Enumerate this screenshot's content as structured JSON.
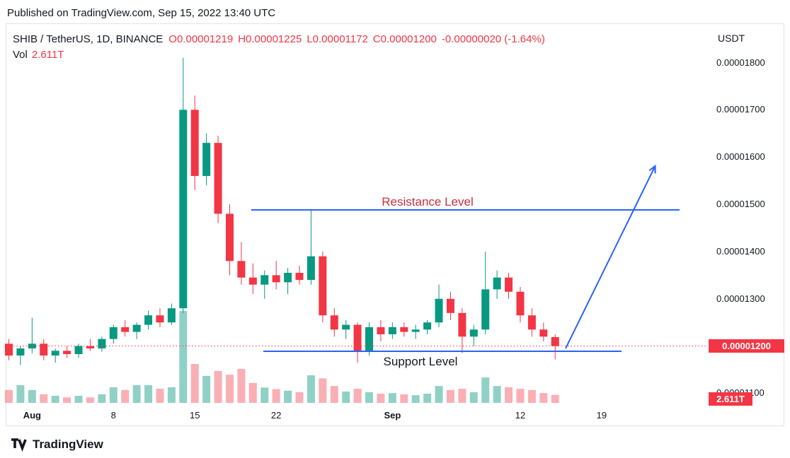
{
  "published": {
    "text": "Published on TradingView.com, Sep 15, 2022 13:40 UTC"
  },
  "legend": {
    "symbol": "SHIB / TetherUS, 1D, BINANCE",
    "ohlc": [
      "O0.00001219",
      "H0.00001225",
      "L0.00001172",
      "C0.00001200",
      "-0.00000020 (-1.64%)"
    ],
    "vol_label": "Vol",
    "vol_value": "2.611T"
  },
  "axis": {
    "currency": "USDT",
    "labels": [
      "0.00001800",
      "0.00001700",
      "0.00001600",
      "0.00001500",
      "0.00001400",
      "0.00001300",
      "0.00001200",
      "0.00001100"
    ],
    "price_badge": "0.00001200",
    "vol_badge": "2.611T"
  },
  "annotations": {
    "resistance": "Resistance Level",
    "support": "Support Level"
  },
  "footer": {
    "brand": "TradingView"
  },
  "colors": {
    "up": "#089981",
    "down": "#f23645",
    "volume_up": "rgba(8,153,129,0.45)",
    "volume_down": "rgba(242,54,69,0.40)",
    "annotation_blue": "#2962ff",
    "label_red": "#cc2f3d",
    "badge_red": "#f23645",
    "text_dark": "#131722"
  },
  "chart_data": {
    "type": "candlestick",
    "title": "SHIB / TetherUS, 1D, BINANCE",
    "interval": "1D",
    "price_unit": "1e-8 USDT (1200 = 0.00001200)",
    "ylim": [
      1100,
      1850
    ],
    "grid": false,
    "last_price": 1200,
    "resistance_level": 1487,
    "support_level": 1189,
    "trend_arrow": {
      "from_price": 1195,
      "to_price": 1585,
      "note": "projected breakout from support toward above resistance"
    },
    "dates": [
      "2022-07-30",
      "2022-07-31",
      "2022-08-01",
      "2022-08-02",
      "2022-08-03",
      "2022-08-04",
      "2022-08-05",
      "2022-08-06",
      "2022-08-07",
      "2022-08-08",
      "2022-08-09",
      "2022-08-10",
      "2022-08-11",
      "2022-08-12",
      "2022-08-13",
      "2022-08-14",
      "2022-08-15",
      "2022-08-16",
      "2022-08-17",
      "2022-08-18",
      "2022-08-19",
      "2022-08-20",
      "2022-08-21",
      "2022-08-22",
      "2022-08-23",
      "2022-08-24",
      "2022-08-25",
      "2022-08-26",
      "2022-08-27",
      "2022-08-28",
      "2022-08-29",
      "2022-08-30",
      "2022-08-31",
      "2022-09-01",
      "2022-09-02",
      "2022-09-03",
      "2022-09-04",
      "2022-09-05",
      "2022-09-06",
      "2022-09-07",
      "2022-09-08",
      "2022-09-09",
      "2022-09-10",
      "2022-09-11",
      "2022-09-12",
      "2022-09-13",
      "2022-09-14",
      "2022-09-15"
    ],
    "ohlc": [
      [
        1205,
        1215,
        1170,
        1180
      ],
      [
        1180,
        1200,
        1160,
        1195
      ],
      [
        1195,
        1260,
        1185,
        1205
      ],
      [
        1205,
        1215,
        1170,
        1180
      ],
      [
        1180,
        1195,
        1165,
        1190
      ],
      [
        1190,
        1200,
        1175,
        1183
      ],
      [
        1183,
        1205,
        1175,
        1200
      ],
      [
        1200,
        1215,
        1190,
        1195
      ],
      [
        1195,
        1220,
        1188,
        1215
      ],
      [
        1215,
        1245,
        1205,
        1240
      ],
      [
        1240,
        1255,
        1220,
        1230
      ],
      [
        1230,
        1250,
        1215,
        1245
      ],
      [
        1245,
        1275,
        1235,
        1265
      ],
      [
        1265,
        1280,
        1240,
        1250
      ],
      [
        1250,
        1290,
        1245,
        1280
      ],
      [
        1280,
        1810,
        1270,
        1700
      ],
      [
        1700,
        1730,
        1530,
        1560
      ],
      [
        1560,
        1650,
        1540,
        1630
      ],
      [
        1630,
        1645,
        1460,
        1480
      ],
      [
        1480,
        1500,
        1350,
        1380
      ],
      [
        1380,
        1420,
        1330,
        1345
      ],
      [
        1345,
        1375,
        1310,
        1330
      ],
      [
        1330,
        1360,
        1300,
        1350
      ],
      [
        1350,
        1380,
        1320,
        1335
      ],
      [
        1335,
        1365,
        1310,
        1355
      ],
      [
        1355,
        1370,
        1330,
        1340
      ],
      [
        1340,
        1490,
        1330,
        1390
      ],
      [
        1390,
        1400,
        1250,
        1265
      ],
      [
        1265,
        1280,
        1220,
        1235
      ],
      [
        1235,
        1255,
        1215,
        1245
      ],
      [
        1245,
        1250,
        1165,
        1190
      ],
      [
        1190,
        1250,
        1180,
        1240
      ],
      [
        1240,
        1255,
        1210,
        1225
      ],
      [
        1225,
        1250,
        1215,
        1240
      ],
      [
        1240,
        1250,
        1220,
        1230
      ],
      [
        1230,
        1245,
        1215,
        1235
      ],
      [
        1235,
        1255,
        1225,
        1250
      ],
      [
        1250,
        1330,
        1240,
        1300
      ],
      [
        1300,
        1315,
        1255,
        1270
      ],
      [
        1270,
        1280,
        1185,
        1220
      ],
      [
        1220,
        1245,
        1200,
        1235
      ],
      [
        1235,
        1400,
        1225,
        1320
      ],
      [
        1320,
        1360,
        1300,
        1345
      ],
      [
        1345,
        1355,
        1300,
        1315
      ],
      [
        1315,
        1325,
        1250,
        1265
      ],
      [
        1265,
        1280,
        1220,
        1235
      ],
      [
        1235,
        1250,
        1210,
        1220
      ],
      [
        1219,
        1225,
        1172,
        1200
      ]
    ],
    "volume_t": [
      4.2,
      5.8,
      4.2,
      2.8,
      2.3,
      1.8,
      2.3,
      1.8,
      2.8,
      5.1,
      4.2,
      5.8,
      5.8,
      4.6,
      5.1,
      30.0,
      12.7,
      8.8,
      10.4,
      9.2,
      11.1,
      6.5,
      5.0,
      4.5,
      4.0,
      3.5,
      9.0,
      8.0,
      5.5,
      3.7,
      4.6,
      3.5,
      3.0,
      3.2,
      2.8,
      2.5,
      3.0,
      5.5,
      4.2,
      4.6,
      3.5,
      8.3,
      5.5,
      5.1,
      4.6,
      4.2,
      3.2,
      2.611
    ],
    "x_ticks": [
      {
        "label": "Aug",
        "index": 2,
        "bold": true
      },
      {
        "label": "8",
        "index": 9,
        "bold": false
      },
      {
        "label": "15",
        "index": 16,
        "bold": false
      },
      {
        "label": "22",
        "index": 23,
        "bold": false
      },
      {
        "label": "Sep",
        "index": 33,
        "bold": true
      },
      {
        "label": "12",
        "index": 44,
        "bold": false
      },
      {
        "label": "19",
        "index": 51,
        "bold": false
      }
    ]
  }
}
